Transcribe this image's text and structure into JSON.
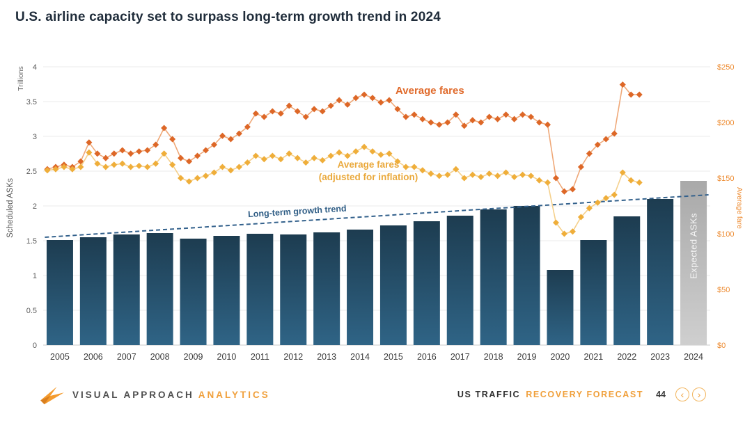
{
  "title": "U.S. airline capacity set to surpass long-term growth trend in 2024",
  "chart_data": {
    "type": "combo-bar-line",
    "x_axis": {
      "years": [
        2005,
        2006,
        2007,
        2008,
        2009,
        2010,
        2011,
        2012,
        2013,
        2014,
        2015,
        2016,
        2017,
        2018,
        2019,
        2020,
        2021,
        2022,
        2023,
        2024
      ]
    },
    "left_axis": {
      "unit_label": "Trillions",
      "label": "Scheduled ASKs",
      "ticks": [
        "0",
        "0.5",
        "1",
        "1.5",
        "2",
        "2.5",
        "3",
        "3.5",
        "4"
      ],
      "min": 0,
      "max": 4
    },
    "right_axis": {
      "label": "Average fare",
      "ticks": [
        "$0",
        "$50",
        "$100",
        "$150",
        "$200",
        "$250"
      ],
      "min": 0,
      "max": 250
    },
    "bars": {
      "name": "Scheduled ASKs (trillions)",
      "values": [
        1.51,
        1.55,
        1.59,
        1.61,
        1.53,
        1.57,
        1.6,
        1.59,
        1.62,
        1.66,
        1.72,
        1.78,
        1.86,
        1.95,
        2.0,
        1.08,
        1.51,
        1.85,
        2.1,
        2.36
      ],
      "expected": {
        "year": 2024,
        "label": "Expected ASKs"
      }
    },
    "lines": [
      {
        "name": "Average fares",
        "marker_color": "#dd6727",
        "line_color": "#efa878",
        "x_start": 2005.125,
        "x_step": 0.25,
        "values": [
          158,
          160,
          162,
          160,
          165,
          182,
          172,
          168,
          172,
          175,
          172,
          174,
          175,
          180,
          195,
          185,
          168,
          165,
          170,
          175,
          180,
          188,
          185,
          190,
          196,
          208,
          205,
          210,
          208,
          215,
          210,
          205,
          212,
          210,
          215,
          220,
          216,
          222,
          225,
          222,
          218,
          220,
          212,
          205,
          207,
          203,
          200,
          198,
          200,
          207,
          197,
          202,
          200,
          205,
          203,
          207,
          203,
          207,
          205,
          200,
          198,
          150,
          138,
          140,
          160,
          172,
          180,
          185,
          190,
          234,
          225,
          225
        ]
      },
      {
        "name": "Average fares (adjusted for inflation)",
        "marker_color": "#efae3a",
        "line_color": "#f5d08b",
        "x_start": 2005.125,
        "x_step": 0.25,
        "values": [
          157,
          158,
          160,
          158,
          160,
          173,
          163,
          160,
          162,
          163,
          160,
          161,
          160,
          163,
          172,
          162,
          150,
          147,
          150,
          152,
          155,
          160,
          157,
          160,
          164,
          170,
          167,
          170,
          167,
          172,
          168,
          164,
          168,
          166,
          170,
          173,
          170,
          174,
          178,
          174,
          171,
          172,
          165,
          160,
          160,
          157,
          154,
          152,
          153,
          158,
          150,
          153,
          151,
          154,
          152,
          155,
          151,
          153,
          152,
          148,
          146,
          110,
          100,
          102,
          115,
          123,
          128,
          132,
          135,
          155,
          148,
          146
        ]
      }
    ],
    "trend": {
      "label": "Long-term growth trend",
      "color": "#33618c",
      "from": [
        2005.05,
        1.55
      ],
      "to": [
        2024.95,
        2.16
      ]
    },
    "annotations": {
      "fares_label": "Average fares",
      "adjusted_label": "Average fares\n(adjusted for inflation)",
      "trend_label": "Long-term growth trend",
      "expected_label": "Expected ASKs"
    },
    "colors": {
      "bar_gradient": [
        "#1d3c50",
        "#2f6486"
      ],
      "expected_gradient": [
        "#a9a9a9",
        "#cfcfcf"
      ],
      "grid": "#ebebeb",
      "baseline": "#c9c9c9",
      "right_axis_orange": "#ed8a2f",
      "brand_orange": "#f0a03c"
    }
  },
  "footer": {
    "brand": "VISUAL APPROACH",
    "brand_suffix": "ANALYTICS",
    "section": "US TRAFFIC",
    "section_highlight": "RECOVERY FORECAST",
    "page": "44",
    "prev_icon": "‹",
    "next_icon": "›"
  }
}
